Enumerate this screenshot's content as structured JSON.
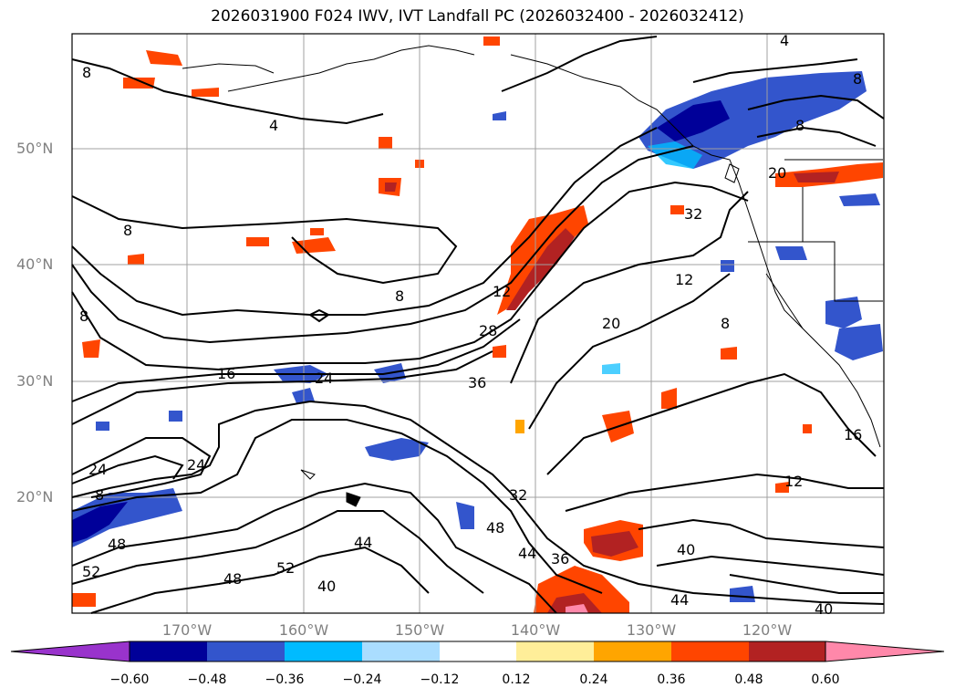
{
  "title": "2026031900 F024 IWV, IVT Landfall PC (2026032400 - 2026032412)",
  "lat_labels": [
    "50°N",
    "40°N",
    "30°N",
    "20°N"
  ],
  "lon_labels": [
    "170°W",
    "160°W",
    "150°W",
    "140°W",
    "130°W",
    "120°W"
  ],
  "colorbar": {
    "ticks": [
      "−0.60",
      "−0.48",
      "−0.36",
      "−0.24",
      "−0.12",
      "0.12",
      "0.24",
      "0.36",
      "0.48",
      "0.60"
    ],
    "colors": [
      "#9933cc",
      "#000099",
      "#3355cc",
      "#00bbff",
      "#aaddff",
      "#ffffff",
      "#ffee99",
      "#ffa500",
      "#ff4500",
      "#b22222",
      "#ff88aa"
    ]
  },
  "contour_labels": [
    "8",
    "4",
    "4",
    "8",
    "8",
    "20",
    "8",
    "8",
    "12",
    "32",
    "12",
    "20",
    "28",
    "16",
    "24",
    "36",
    "8",
    "24",
    "24",
    "8",
    "32",
    "48",
    "44",
    "36",
    "40",
    "44",
    "48",
    "52",
    "52",
    "48",
    "40",
    "44",
    "40",
    "12",
    "16",
    "8"
  ],
  "colors": {
    "ocean_bg": "#ffffff",
    "contour": "#000000",
    "coast": "#000000",
    "grid": "#a0a0a0",
    "axis_text": "#808080"
  }
}
